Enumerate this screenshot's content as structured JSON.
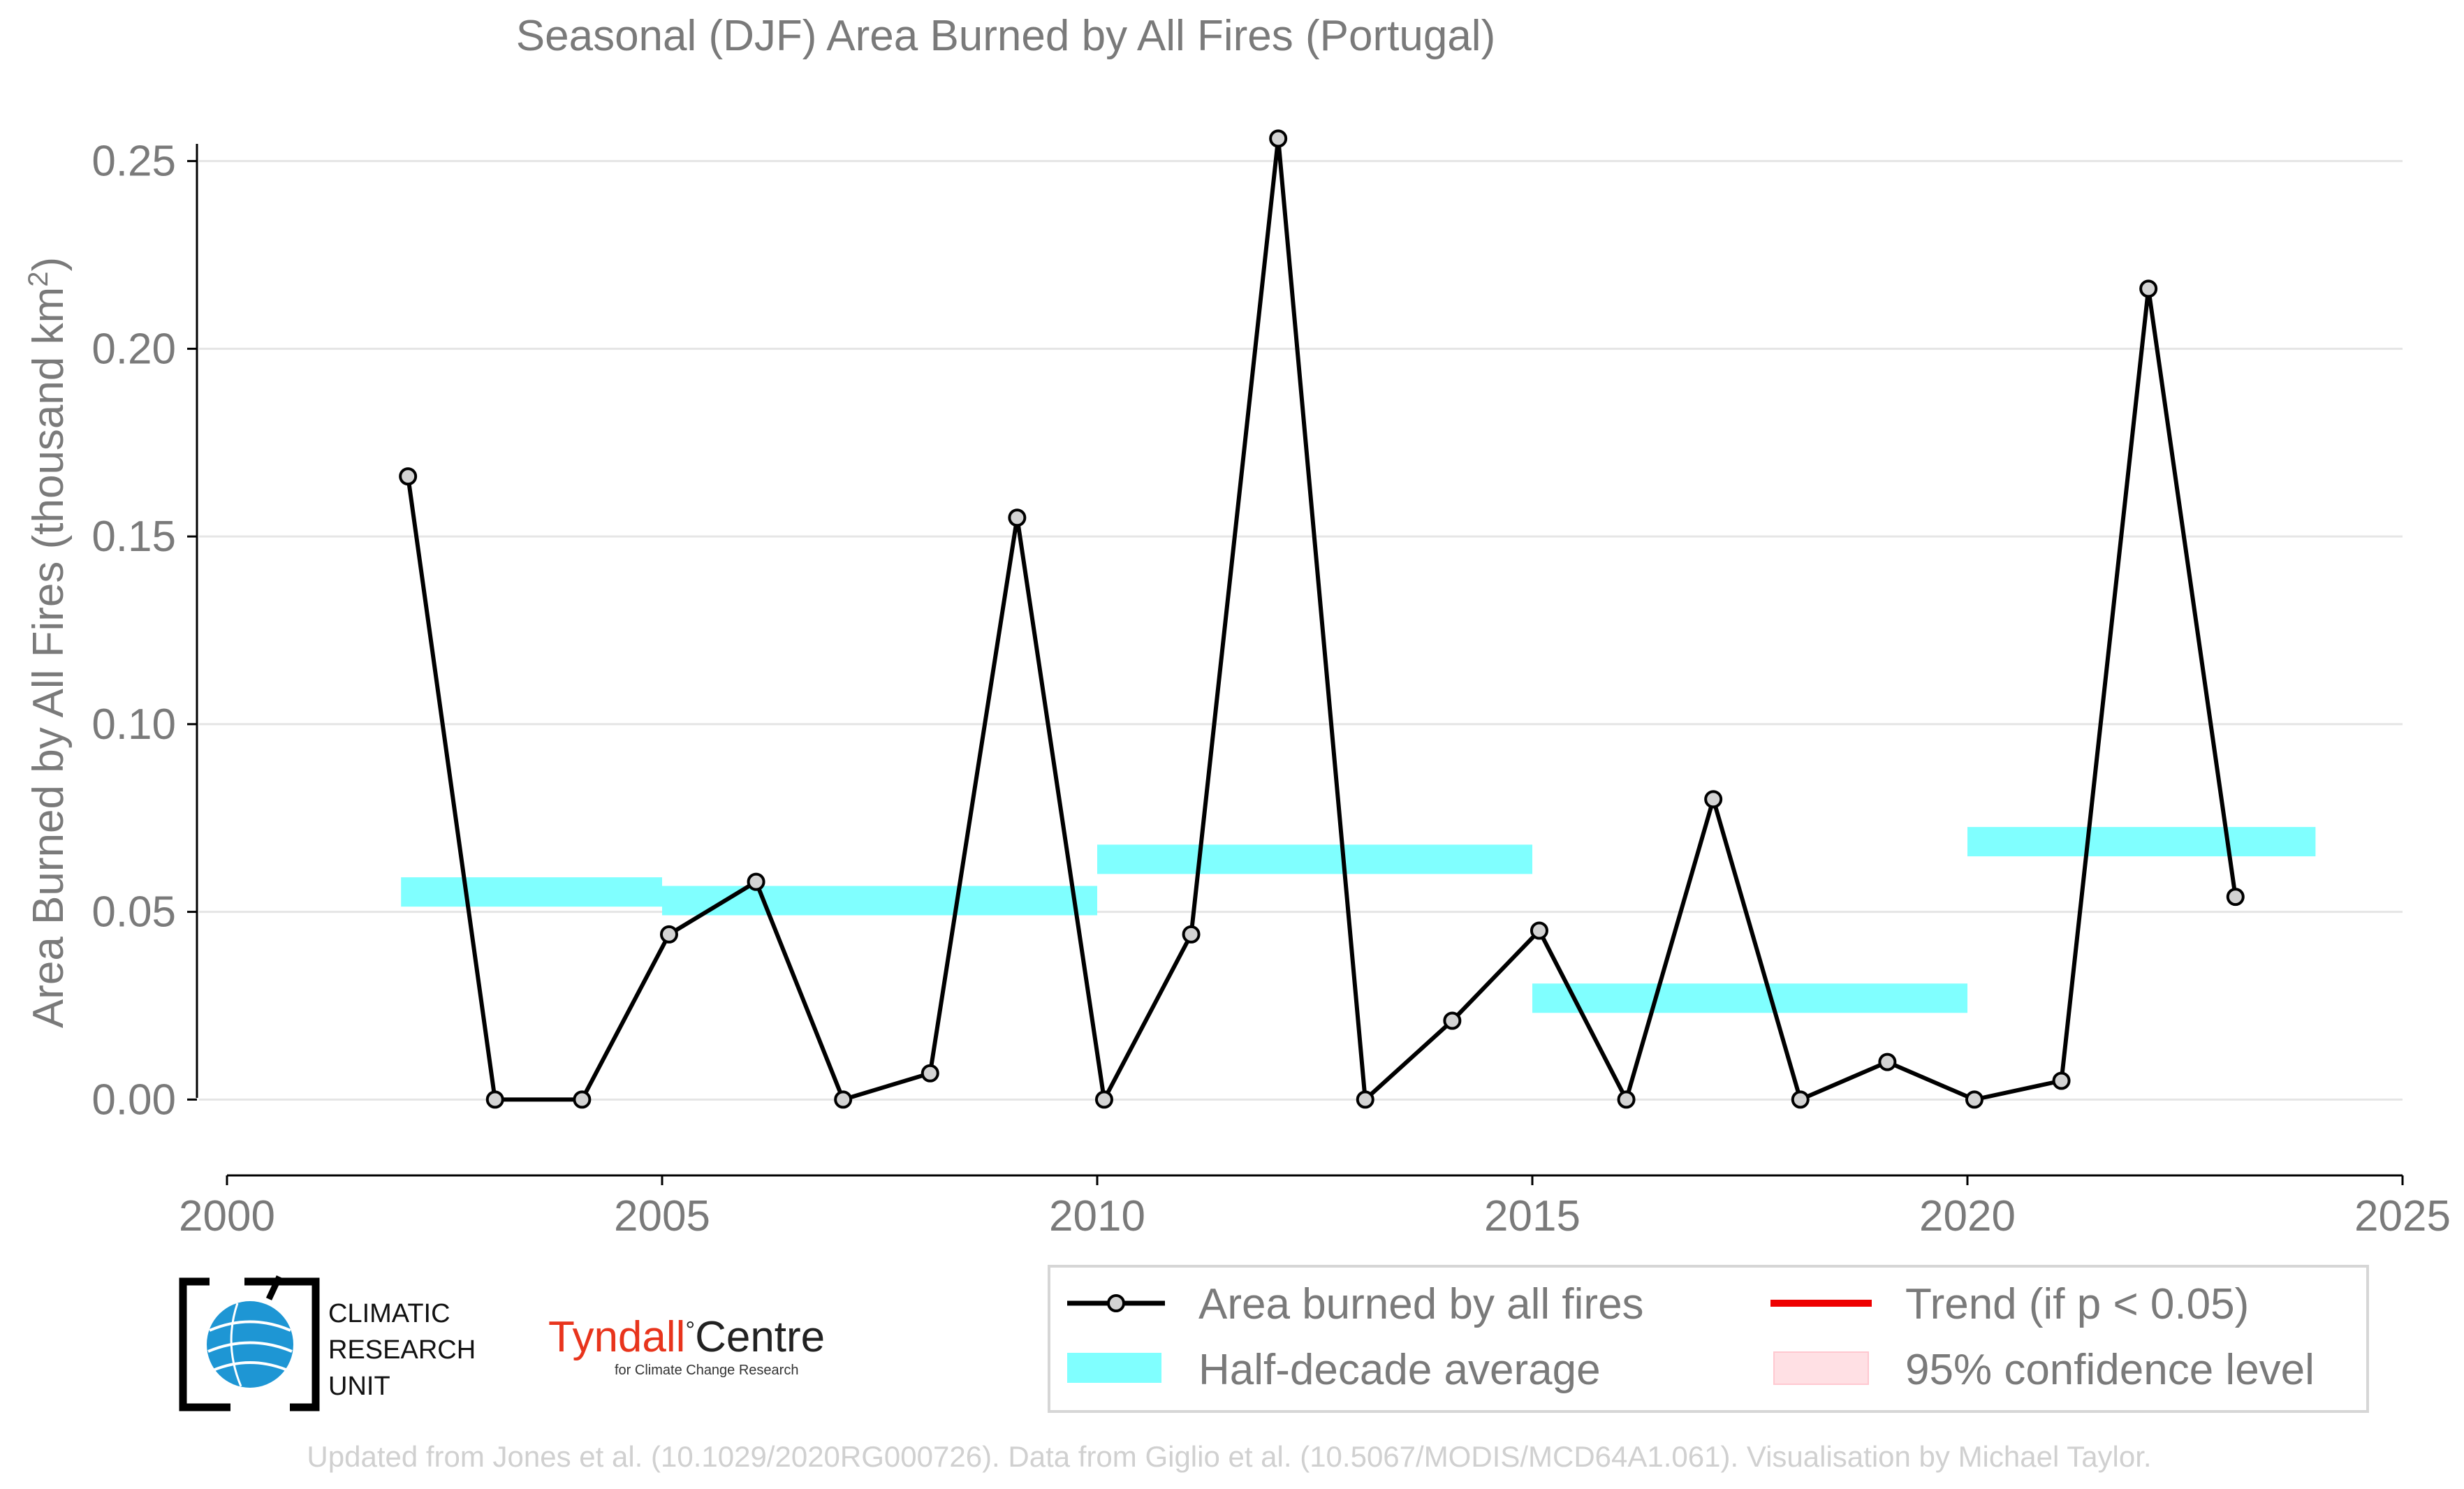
{
  "chart_data": {
    "type": "line",
    "title": "Seasonal (DJF) Area Burned by All Fires (Portugal)",
    "ylabel": "Area Burned by All Fires (thousand km",
    "ylabel_sup": "2",
    "ylabel_close": ")",
    "xlabel": "",
    "xlim": [
      2000,
      2025
    ],
    "ylim": [
      -0.015,
      0.265
    ],
    "x_ticks": [
      {
        "value": 2000,
        "label": "2000"
      },
      {
        "value": 2005,
        "label": "2005"
      },
      {
        "value": 2010,
        "label": "2010"
      },
      {
        "value": 2015,
        "label": "2015"
      },
      {
        "value": 2020,
        "label": "2020"
      },
      {
        "value": 2025,
        "label": "2025"
      }
    ],
    "y_ticks": [
      {
        "value": 0.0,
        "label": "0.00"
      },
      {
        "value": 0.05,
        "label": "0.05"
      },
      {
        "value": 0.1,
        "label": "0.10"
      },
      {
        "value": 0.15,
        "label": "0.15"
      },
      {
        "value": 0.2,
        "label": "0.20"
      },
      {
        "value": 0.25,
        "label": "0.25"
      }
    ],
    "grid": "horizontal",
    "series": [
      {
        "name": "Area burned by all fires",
        "color": "#000000",
        "marker_fill": "#d3d3d3",
        "x": [
          2002.08,
          2003.08,
          2004.08,
          2005.08,
          2006.08,
          2007.08,
          2008.08,
          2009.08,
          2010.08,
          2011.08,
          2012.08,
          2013.08,
          2014.08,
          2015.08,
          2016.08,
          2017.08,
          2018.08,
          2019.08,
          2020.08,
          2021.08,
          2022.08,
          2023.08
        ],
        "y": [
          0.166,
          0.0,
          0.0,
          0.044,
          0.058,
          0.0,
          0.007,
          0.155,
          0.0,
          0.044,
          0.256,
          0.0,
          0.021,
          0.045,
          0.0,
          0.08,
          0.0,
          0.01,
          0.0,
          0.005,
          0.216,
          0.054
        ]
      }
    ],
    "half_decade_averages": {
      "name": "Half-decade average",
      "color": "#80ffff",
      "segments": [
        {
          "x0": 2002.0,
          "x1": 2005.0,
          "y": 0.0553
        },
        {
          "x0": 2005.0,
          "x1": 2010.0,
          "y": 0.053
        },
        {
          "x0": 2010.0,
          "x1": 2015.0,
          "y": 0.064
        },
        {
          "x0": 2015.0,
          "x1": 2020.0,
          "y": 0.027
        },
        {
          "x0": 2020.0,
          "x1": 2024.0,
          "y": 0.0687
        }
      ]
    },
    "legend": {
      "position": "bottom-right",
      "entries": [
        {
          "label": "Area burned by all fires",
          "kind": "line-marker",
          "color": "#000000"
        },
        {
          "label": "Trend (if p < 0.05)",
          "kind": "line",
          "color": "#ee0000"
        },
        {
          "label": "Half-decade average",
          "kind": "band",
          "color": "#80ffff"
        },
        {
          "label": "95% confidence level",
          "kind": "box",
          "color": "#ffe0e4"
        }
      ]
    }
  },
  "logos": {
    "cru_line1": "CLIMATIC",
    "cru_line2": "RESEARCH",
    "cru_line3": "UNIT",
    "tyndall_name": "Tyndall",
    "tyndall_degree": "°",
    "tyndall_centre": "Centre",
    "tyndall_tagline": "for Climate Change Research",
    "cru_icon": "globe-icon",
    "tyndall_color": "#e8341c"
  },
  "footer": "Updated from Jones et al. (10.1029/2020RG000726). Data from Giglio et al. (10.5067/MODIS/MCD64A1.061). Visualisation by Michael Taylor."
}
